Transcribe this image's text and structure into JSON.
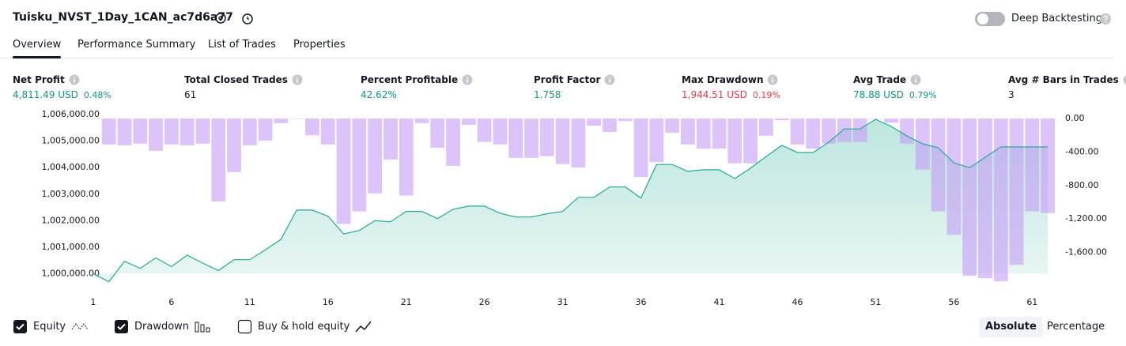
{
  "header": {
    "title": "Tuisku_NVST_1Day_1CAN_ac7d6a77",
    "toggle_label": "Deep Backtesting",
    "toggle_on": false
  },
  "tabs": {
    "items": [
      "Overview",
      "Performance Summary",
      "List of Trades",
      "Properties"
    ],
    "active": 0
  },
  "metrics": [
    {
      "label": "Net Profit",
      "value": "4,811.49 USD",
      "percent": "0.48%",
      "color": "#089981"
    },
    {
      "label": "Total Closed Trades",
      "value": "61",
      "color": "#131722"
    },
    {
      "label": "Percent Profitable",
      "value": "42.62%",
      "color": "#089981"
    },
    {
      "label": "Profit Factor",
      "value": "1.758",
      "color": "#089981"
    },
    {
      "label": "Max Drawdown",
      "value": "1,944.51 USD",
      "percent": "0.19%",
      "color": "#f23645"
    },
    {
      "label": "Avg Trade",
      "value": "78.88 USD",
      "percent": "0.79%",
      "color": "#089981"
    },
    {
      "label": "Avg # Bars in Trades",
      "value": "3",
      "color": "#131722"
    }
  ],
  "chart_data": {
    "type": "equity",
    "x": [
      1,
      2,
      3,
      4,
      5,
      6,
      7,
      8,
      9,
      10,
      11,
      12,
      13,
      14,
      15,
      16,
      17,
      18,
      19,
      20,
      21,
      22,
      23,
      24,
      25,
      26,
      27,
      28,
      29,
      30,
      31,
      32,
      33,
      34,
      35,
      36,
      37,
      38,
      39,
      40,
      41,
      42,
      43,
      44,
      45,
      46,
      47,
      48,
      49,
      50,
      51,
      52,
      53,
      54,
      55,
      56,
      57,
      58,
      59,
      60,
      61,
      62
    ],
    "series": [
      {
        "name": "Equity",
        "color": "#22ab94",
        "values": [
          1000000,
          999700,
          1000470,
          1000200,
          1000600,
          1000270,
          1000700,
          1000400,
          1000120,
          1000530,
          1000530,
          1000900,
          1001300,
          1002400,
          1002400,
          1002170,
          1001500,
          1001630,
          1002000,
          1001960,
          1002350,
          1002350,
          1002080,
          1002430,
          1002550,
          1002550,
          1002280,
          1002140,
          1002140,
          1002260,
          1002350,
          1002880,
          1002880,
          1003270,
          1003270,
          1002850,
          1004120,
          1004120,
          1003860,
          1003920,
          1003920,
          1003590,
          1003980,
          1004420,
          1004840,
          1004570,
          1004570,
          1004960,
          1005460,
          1005460,
          1005820,
          1005550,
          1005190,
          1004900,
          1004750,
          1004180,
          1004000,
          1004390,
          1004780,
          1004780,
          1004780,
          1004780
        ]
      },
      {
        "name": "Drawdown",
        "color": "#c59bf7",
        "axis": "y2",
        "values": [
          0,
          -310,
          -320,
          -300,
          -385,
          -310,
          -320,
          -300,
          -990,
          -640,
          -320,
          -265,
          -55,
          0,
          -200,
          -310,
          -1260,
          -1110,
          -895,
          -490,
          -920,
          -55,
          -350,
          -565,
          -75,
          -280,
          -310,
          -470,
          -470,
          -450,
          -545,
          -585,
          -85,
          -160,
          -30,
          -700,
          -520,
          -170,
          -310,
          -360,
          -360,
          -535,
          -535,
          -205,
          -20,
          -310,
          -360,
          -300,
          -280,
          -280,
          0,
          -50,
          -300,
          -610,
          -1110,
          -1390,
          -1880,
          -1910,
          -1944.5,
          -1750,
          -1110,
          -1130
        ]
      }
    ],
    "xlim": [
      0.5,
      62.5
    ],
    "xticks": [
      1,
      6,
      11,
      16,
      21,
      26,
      31,
      36,
      41,
      46,
      51,
      56,
      61
    ],
    "ylim": [
      999450,
      1006150
    ],
    "yticks": [
      {
        "value": 1000000,
        "label": "1,000,000.00"
      },
      {
        "value": 1001000,
        "label": "1,001,000.00"
      },
      {
        "value": 1002000,
        "label": "1,002,000.00"
      },
      {
        "value": 1003000,
        "label": "1,003,000.00"
      },
      {
        "value": 1004000,
        "label": "1,004,000.00"
      },
      {
        "value": 1005000,
        "label": "1,005,000.00"
      },
      {
        "value": 1006000,
        "label": "1,006,000.00"
      }
    ],
    "y2lim": [
      -2030,
      95
    ],
    "y2ticks": [
      {
        "value": 0,
        "label": "0.00"
      },
      {
        "value": -400,
        "label": "-400.00"
      },
      {
        "value": -800,
        "label": "-800.00"
      },
      {
        "value": -1200,
        "label": "-1,200.00"
      },
      {
        "value": -1600,
        "label": "-1,600.00"
      }
    ]
  },
  "footer": {
    "checkboxes": [
      {
        "label": "Equity",
        "checked": true
      },
      {
        "label": "Drawdown",
        "checked": true
      },
      {
        "label": "Buy & hold equity",
        "checked": false
      }
    ],
    "modes": [
      "Absolute",
      "Percentage"
    ],
    "active_mode": 0
  }
}
